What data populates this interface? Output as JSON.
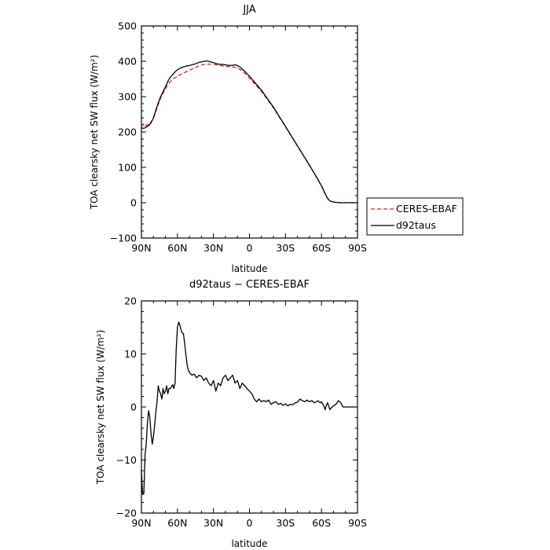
{
  "chart_data": [
    {
      "type": "line",
      "title": "JJA",
      "xlabel": "latitude",
      "ylabel": "TOA clearsky net SW flux (W/m²)",
      "xlim": [
        90,
        -90
      ],
      "ylim": [
        -100,
        500
      ],
      "x_ticks": [
        90,
        60,
        30,
        0,
        -30,
        -60,
        -90
      ],
      "x_tick_labels": [
        "90N",
        "60N",
        "30N",
        "0",
        "30S",
        "60S",
        "90S"
      ],
      "y_ticks": [
        -100,
        0,
        100,
        200,
        300,
        400,
        500
      ],
      "y_tick_labels": [
        "−100",
        "0",
        "100",
        "200",
        "300",
        "400",
        "500"
      ],
      "legend_position": "right",
      "series": [
        {
          "name": "CERES-EBAF",
          "color": "#e0201a",
          "dash": "dashed",
          "x": [
            90,
            88,
            86,
            84,
            82,
            80,
            78,
            76,
            74,
            72,
            70,
            68,
            66,
            64,
            62,
            60,
            58,
            56,
            54,
            52,
            50,
            48,
            46,
            44,
            42,
            40,
            38,
            36,
            34,
            32,
            30,
            28,
            26,
            24,
            22,
            20,
            18,
            16,
            14,
            12,
            10,
            8,
            6,
            4,
            2,
            0,
            -10,
            -20,
            -30,
            -40,
            -50,
            -55,
            -60,
            -63,
            -65,
            -67,
            -70,
            -75,
            -80,
            -85,
            -90
          ],
          "y": [
            215,
            225,
            218,
            222,
            228,
            238,
            258,
            278,
            296,
            310,
            322,
            334,
            342,
            350,
            354,
            356,
            362,
            365,
            368,
            372,
            375,
            378,
            381,
            384,
            387,
            389,
            391,
            392,
            392,
            392,
            391,
            390,
            389,
            388,
            387,
            386,
            385,
            385,
            384,
            383,
            381,
            377,
            372,
            366,
            359,
            352,
            315,
            268,
            215,
            160,
            105,
            77,
            47,
            25,
            12,
            5,
            2,
            0,
            0,
            0,
            0
          ]
        },
        {
          "name": "d92taus",
          "color": "#000000",
          "dash": "solid",
          "x": [
            90,
            88,
            86,
            84,
            82,
            80,
            78,
            76,
            74,
            72,
            70,
            68,
            66,
            64,
            62,
            60,
            58,
            56,
            54,
            52,
            50,
            48,
            46,
            44,
            42,
            40,
            38,
            36,
            34,
            32,
            30,
            28,
            26,
            24,
            22,
            20,
            18,
            16,
            14,
            12,
            10,
            8,
            6,
            4,
            2,
            0,
            -10,
            -20,
            -30,
            -40,
            -50,
            -55,
            -60,
            -63,
            -65,
            -67,
            -70,
            -75,
            -80,
            -85,
            -90
          ],
          "y": [
            212,
            210,
            214,
            218,
            226,
            240,
            262,
            282,
            300,
            314,
            328,
            343,
            355,
            362,
            370,
            376,
            380,
            383,
            385,
            387,
            388,
            390,
            392,
            394,
            397,
            398,
            400,
            401,
            400,
            398,
            396,
            394,
            392,
            391,
            391,
            390,
            389,
            388,
            389,
            390,
            388,
            384,
            378,
            372,
            365,
            358,
            318,
            270,
            216,
            161,
            106,
            78,
            48,
            26,
            13,
            5,
            2,
            0,
            0,
            0,
            0
          ]
        }
      ]
    },
    {
      "type": "line",
      "title": "d92taus − CERES-EBAF",
      "xlabel": "latitude",
      "ylabel": "TOA clearsky net SW flux (W/m²)",
      "xlim": [
        90,
        -90
      ],
      "ylim": [
        -20,
        20
      ],
      "x_ticks": [
        90,
        60,
        30,
        0,
        -30,
        -60,
        -90
      ],
      "x_tick_labels": [
        "90N",
        "60N",
        "30N",
        "0",
        "30S",
        "60S",
        "90S"
      ],
      "y_ticks": [
        -20,
        -10,
        0,
        10,
        20
      ],
      "y_tick_labels": [
        "−20",
        "−10",
        "0",
        "10",
        "20"
      ],
      "series": [
        {
          "color": "#000000",
          "dash": "solid",
          "x": [
            90,
            89,
            88,
            87,
            86,
            85,
            84,
            83,
            82,
            81,
            80,
            79,
            78,
            77,
            76,
            75,
            74,
            73,
            72,
            71,
            70,
            69,
            68,
            67,
            66,
            65,
            64,
            63,
            62,
            61,
            60,
            59,
            58,
            57,
            56,
            55,
            54,
            53,
            52,
            51,
            50,
            48,
            46,
            44,
            42,
            40,
            38,
            36,
            34,
            32,
            30,
            28,
            26,
            24,
            22,
            20,
            18,
            16,
            14,
            12,
            10,
            8,
            6,
            4,
            2,
            0,
            -2,
            -4,
            -6,
            -8,
            -10,
            -12,
            -14,
            -16,
            -18,
            -20,
            -22,
            -24,
            -26,
            -28,
            -30,
            -32,
            -34,
            -36,
            -38,
            -40,
            -42,
            -44,
            -46,
            -48,
            -50,
            -52,
            -54,
            -56,
            -57,
            -58,
            -59,
            -60,
            -61,
            -62,
            -63,
            -64,
            -65,
            -66,
            -67,
            -68,
            -70,
            -72,
            -74,
            -76,
            -78,
            -80,
            -85,
            -90
          ],
          "y": [
            -12,
            -16.5,
            -16.3,
            -9,
            -7,
            -3,
            -0.7,
            -2,
            -5,
            -7,
            -5.5,
            -3.5,
            -1,
            1,
            4,
            3,
            2.5,
            1.5,
            3.5,
            2.5,
            3,
            4,
            2.5,
            3.5,
            3.5,
            3.8,
            4.2,
            3.5,
            4.5,
            11,
            15,
            16,
            15.5,
            14.5,
            14,
            13.8,
            12,
            10,
            8,
            7,
            6.5,
            6,
            6.2,
            5.5,
            6,
            5.8,
            5,
            5.5,
            4.5,
            4,
            5,
            3,
            4.5,
            4,
            5.5,
            6,
            5,
            5.5,
            6,
            4.5,
            5,
            3.5,
            4.5,
            4,
            3.5,
            3,
            2.5,
            1.5,
            1,
            1.5,
            1,
            1.2,
            1,
            1.3,
            0.5,
            0.8,
            1,
            0.5,
            0.7,
            0.3,
            0.6,
            0.2,
            0.5,
            0.4,
            0.8,
            0.9,
            1.5,
            1.2,
            1,
            1.3,
            1,
            1.2,
            0.8,
            1,
            1.2,
            1,
            0.8,
            1,
            0.6,
            0.2,
            -0.5,
            0.3,
            0.8,
            0.2,
            -0.5,
            -0.2,
            0.2,
            0.5,
            1.2,
            0.8,
            0,
            0,
            0,
            0
          ]
        }
      ]
    }
  ]
}
